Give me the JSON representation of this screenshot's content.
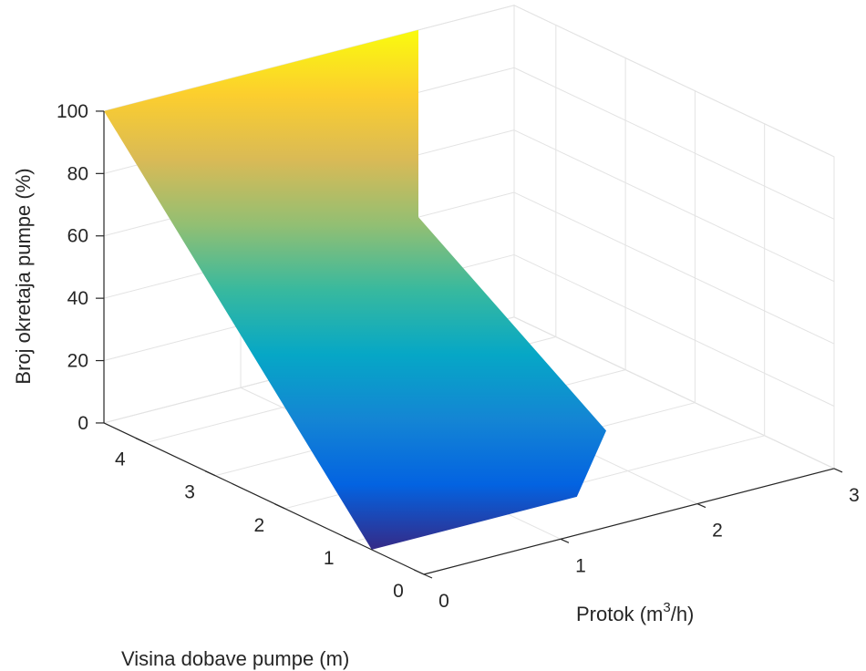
{
  "chart_data": {
    "type": "surface",
    "title": "",
    "xlabel": "Protok (m",
    "xlabel_sup": "3",
    "xlabel_suffix": "/h)",
    "ylabel": "Visina dobave pumpe (m)",
    "zlabel": "Broj okretaja pumpe (%)",
    "xlim": [
      0,
      3
    ],
    "ylim": [
      0,
      4.6
    ],
    "zlim": [
      0,
      100
    ],
    "xticks": [
      0,
      1,
      2,
      3
    ],
    "yticks": [
      0,
      1,
      2,
      3,
      4
    ],
    "zticks": [
      0,
      20,
      40,
      60,
      80,
      100
    ],
    "grid": true,
    "colormap": "parula",
    "colors": [
      "#352a87",
      "#0363e1",
      "#1485d4",
      "#06a7c6",
      "#38b99e",
      "#92bf73",
      "#d9ba56",
      "#fcce2e",
      "#f9fb0e"
    ],
    "surface": {
      "description_points": [
        {
          "x": 0.0,
          "y": 4.6,
          "z": 100
        },
        {
          "x": 2.3,
          "y": 4.6,
          "z": 100
        },
        {
          "x": 0.0,
          "y": 0.75,
          "z": 0
        },
        {
          "x": 1.5,
          "y": 0.75,
          "z": 0
        },
        {
          "x": 2.3,
          "y": 1.9,
          "z": 0
        },
        {
          "x": 2.3,
          "y": 4.6,
          "z": 40
        }
      ]
    }
  }
}
